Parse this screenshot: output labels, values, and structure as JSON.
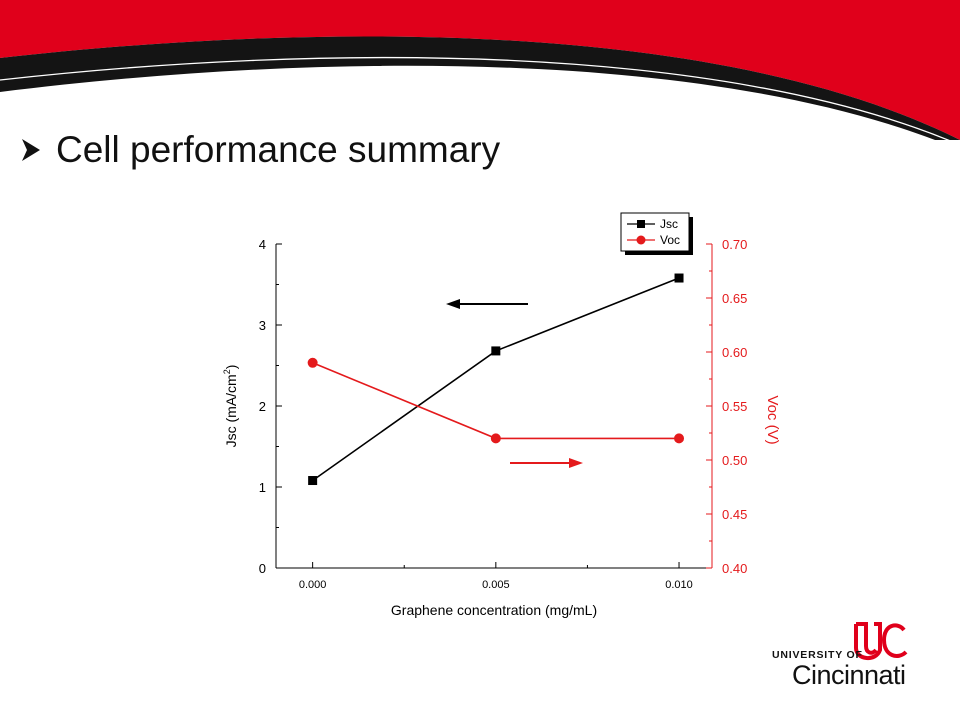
{
  "slide": {
    "title": "Cell performance summary",
    "accent_color": "#e0001b",
    "dark_color": "#111111"
  },
  "logo": {
    "university_of": "UNIVERSITY OF",
    "name": "Cincinnati"
  },
  "chart_data": {
    "type": "line",
    "title": "",
    "xlabel": "Graphene concentration (mg/mL)",
    "ylabel_left": "Jsc (mA/cm",
    "ylabel_left_sup": "2",
    "ylabel_left_close": ")",
    "ylabel_right": "Voc (V)",
    "x": [
      0.0,
      0.005,
      0.01
    ],
    "x_tick_labels": [
      "0.000",
      "0.005",
      "0.010"
    ],
    "xlim": [
      -0.001,
      0.0109
    ],
    "ylim_left": [
      0,
      4
    ],
    "y_left_tick_labels": [
      "0",
      "1",
      "2",
      "3",
      "4"
    ],
    "ylim_right": [
      0.4,
      0.7
    ],
    "y_right_tick_labels": [
      "0.40",
      "0.45",
      "0.50",
      "0.55",
      "0.60",
      "0.65",
      "0.70"
    ],
    "grid": false,
    "legend_position": "top-right",
    "series": [
      {
        "name": "Jsc",
        "axis": "left",
        "marker": "square",
        "color": "#000000",
        "values": [
          1.08,
          2.68,
          3.58
        ]
      },
      {
        "name": "Voc",
        "axis": "right",
        "marker": "circle",
        "color": "#e41a1c",
        "values": [
          0.59,
          0.52,
          0.52
        ]
      }
    ],
    "annotations": [
      {
        "type": "arrow",
        "direction": "left",
        "color": "#000000",
        "points_to": "left axis"
      },
      {
        "type": "arrow",
        "direction": "right",
        "color": "#e41a1c",
        "points_to": "right axis"
      }
    ]
  }
}
